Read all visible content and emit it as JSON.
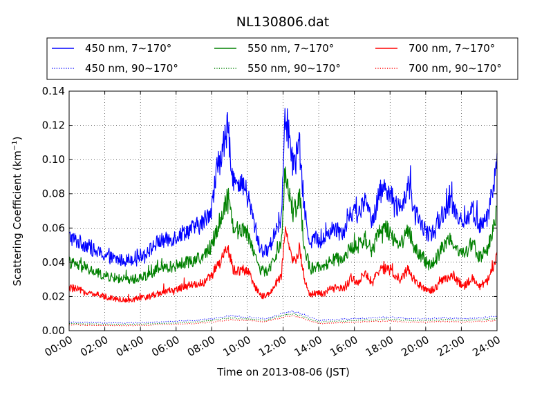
{
  "chart_data": {
    "type": "line",
    "title": "NL130806.dat",
    "xlabel": "Time on 2013-08-06 (JST)",
    "ylabel": "Scattering Coefficient (km",
    "ylabel_sup": "−1",
    "ylabel_end": ")",
    "x_ticks": [
      "00:00",
      "02:00",
      "04:00",
      "06:00",
      "08:00",
      "10:00",
      "12:00",
      "14:00",
      "16:00",
      "18:00",
      "20:00",
      "22:00",
      "24:00"
    ],
    "y_ticks": [
      "0.00",
      "0.02",
      "0.04",
      "0.06",
      "0.08",
      "0.10",
      "0.12",
      "0.14"
    ],
    "xlim": [
      0,
      24
    ],
    "ylim": [
      0,
      0.14
    ],
    "grid": true,
    "legend_position": "top",
    "series": [
      {
        "name": "450 nm, 7∼170°",
        "color": "#0000ff",
        "style": "solid",
        "x": [
          0,
          0.5,
          1,
          1.5,
          2,
          2.5,
          3,
          3.5,
          4,
          4.5,
          5,
          5.5,
          6,
          6.5,
          7,
          7.5,
          8,
          8.3,
          8.6,
          8.9,
          9.2,
          9.5,
          9.8,
          10.1,
          10.4,
          10.7,
          11,
          11.3,
          11.6,
          11.9,
          12.1,
          12.3,
          12.6,
          12.9,
          13.2,
          13.5,
          13.8,
          14.2,
          14.6,
          15,
          15.4,
          15.8,
          16.2,
          16.6,
          17,
          17.4,
          17.8,
          18.2,
          18.6,
          19,
          19.4,
          19.8,
          20.2,
          20.6,
          21,
          21.4,
          21.8,
          22.2,
          22.6,
          23,
          23.4,
          23.7,
          24
        ],
        "y": [
          0.055,
          0.052,
          0.05,
          0.046,
          0.044,
          0.042,
          0.041,
          0.042,
          0.044,
          0.047,
          0.052,
          0.053,
          0.055,
          0.058,
          0.06,
          0.063,
          0.072,
          0.095,
          0.105,
          0.118,
          0.09,
          0.082,
          0.085,
          0.075,
          0.062,
          0.048,
          0.046,
          0.05,
          0.06,
          0.065,
          0.13,
          0.115,
          0.095,
          0.11,
          0.07,
          0.052,
          0.054,
          0.052,
          0.058,
          0.06,
          0.058,
          0.07,
          0.068,
          0.075,
          0.065,
          0.08,
          0.085,
          0.075,
          0.07,
          0.085,
          0.068,
          0.062,
          0.055,
          0.06,
          0.07,
          0.075,
          0.068,
          0.062,
          0.072,
          0.06,
          0.065,
          0.078,
          0.1
        ]
      },
      {
        "name": "550 nm, 7∼170°",
        "color": "#008000",
        "style": "solid",
        "x": [
          0,
          0.5,
          1,
          1.5,
          2,
          2.5,
          3,
          3.5,
          4,
          4.5,
          5,
          5.5,
          6,
          6.5,
          7,
          7.5,
          8,
          8.3,
          8.6,
          8.9,
          9.2,
          9.5,
          9.8,
          10.1,
          10.4,
          10.7,
          11,
          11.3,
          11.6,
          11.9,
          12.1,
          12.3,
          12.6,
          12.9,
          13.2,
          13.5,
          13.8,
          14.2,
          14.6,
          15,
          15.4,
          15.8,
          16.2,
          16.6,
          17,
          17.4,
          17.8,
          18.2,
          18.6,
          19,
          19.4,
          19.8,
          20.2,
          20.6,
          21,
          21.4,
          21.8,
          22.2,
          22.6,
          23,
          23.4,
          23.7,
          24
        ],
        "y": [
          0.04,
          0.038,
          0.036,
          0.034,
          0.032,
          0.031,
          0.03,
          0.03,
          0.031,
          0.033,
          0.036,
          0.037,
          0.038,
          0.04,
          0.041,
          0.043,
          0.05,
          0.06,
          0.068,
          0.08,
          0.062,
          0.058,
          0.06,
          0.055,
          0.045,
          0.036,
          0.034,
          0.037,
          0.045,
          0.05,
          0.092,
          0.082,
          0.068,
          0.08,
          0.05,
          0.036,
          0.037,
          0.036,
          0.04,
          0.042,
          0.04,
          0.05,
          0.048,
          0.054,
          0.046,
          0.058,
          0.06,
          0.054,
          0.05,
          0.06,
          0.048,
          0.043,
          0.038,
          0.042,
          0.05,
          0.054,
          0.048,
          0.044,
          0.052,
          0.043,
          0.046,
          0.056,
          0.07
        ]
      },
      {
        "name": "700 nm, 7∼170°",
        "color": "#ff0000",
        "style": "solid",
        "x": [
          0,
          0.5,
          1,
          1.5,
          2,
          2.5,
          3,
          3.5,
          4,
          4.5,
          5,
          5.5,
          6,
          6.5,
          7,
          7.5,
          8,
          8.3,
          8.6,
          8.9,
          9.2,
          9.5,
          9.8,
          10.1,
          10.4,
          10.7,
          11,
          11.3,
          11.6,
          11.9,
          12.1,
          12.3,
          12.6,
          12.9,
          13.2,
          13.5,
          13.8,
          14.2,
          14.6,
          15,
          15.4,
          15.8,
          16.2,
          16.6,
          17,
          17.4,
          17.8,
          18.2,
          18.6,
          19,
          19.4,
          19.8,
          20.2,
          20.6,
          21,
          21.4,
          21.8,
          22.2,
          22.6,
          23,
          23.4,
          23.7,
          24
        ],
        "y": [
          0.025,
          0.024,
          0.022,
          0.021,
          0.02,
          0.019,
          0.018,
          0.018,
          0.019,
          0.02,
          0.022,
          0.023,
          0.024,
          0.026,
          0.027,
          0.028,
          0.032,
          0.038,
          0.042,
          0.048,
          0.036,
          0.035,
          0.036,
          0.033,
          0.026,
          0.021,
          0.02,
          0.022,
          0.028,
          0.031,
          0.058,
          0.05,
          0.04,
          0.048,
          0.03,
          0.021,
          0.022,
          0.021,
          0.024,
          0.025,
          0.024,
          0.03,
          0.029,
          0.033,
          0.028,
          0.035,
          0.036,
          0.033,
          0.03,
          0.036,
          0.029,
          0.026,
          0.023,
          0.025,
          0.03,
          0.032,
          0.029,
          0.026,
          0.031,
          0.026,
          0.028,
          0.034,
          0.044
        ]
      },
      {
        "name": "450 nm, 90∼170°",
        "color": "#0000ff",
        "style": "dotted",
        "x": [
          0,
          1,
          2,
          3,
          4,
          5,
          6,
          7,
          8,
          9,
          10,
          11,
          12,
          12.5,
          13,
          14,
          15,
          16,
          17,
          18,
          19,
          20,
          21,
          22,
          23,
          24
        ],
        "y": [
          0.005,
          0.0048,
          0.0046,
          0.0045,
          0.0046,
          0.005,
          0.0055,
          0.006,
          0.007,
          0.0085,
          0.008,
          0.007,
          0.01,
          0.0115,
          0.01,
          0.006,
          0.0065,
          0.007,
          0.0075,
          0.008,
          0.007,
          0.007,
          0.0075,
          0.007,
          0.0075,
          0.0085
        ]
      },
      {
        "name": "550 nm, 90∼170°",
        "color": "#008000",
        "style": "dotted",
        "x": [
          0,
          1,
          2,
          3,
          4,
          5,
          6,
          7,
          8,
          9,
          10,
          11,
          12,
          12.5,
          13,
          14,
          15,
          16,
          17,
          18,
          19,
          20,
          21,
          22,
          23,
          24
        ],
        "y": [
          0.0042,
          0.004,
          0.0038,
          0.0037,
          0.0038,
          0.0042,
          0.0046,
          0.005,
          0.006,
          0.0075,
          0.007,
          0.006,
          0.009,
          0.01,
          0.0088,
          0.005,
          0.0055,
          0.006,
          0.0064,
          0.0068,
          0.006,
          0.006,
          0.0064,
          0.006,
          0.0064,
          0.0072
        ]
      },
      {
        "name": "700 nm, 90∼170°",
        "color": "#ff0000",
        "style": "dotted",
        "x": [
          0,
          1,
          2,
          3,
          4,
          5,
          6,
          7,
          8,
          9,
          10,
          11,
          12,
          12.5,
          13,
          14,
          15,
          16,
          17,
          18,
          19,
          20,
          21,
          22,
          23,
          24
        ],
        "y": [
          0.0034,
          0.0032,
          0.0031,
          0.003,
          0.0031,
          0.0034,
          0.0038,
          0.0042,
          0.005,
          0.0065,
          0.006,
          0.0052,
          0.008,
          0.0088,
          0.0076,
          0.0042,
          0.0046,
          0.005,
          0.0054,
          0.0058,
          0.005,
          0.005,
          0.0054,
          0.005,
          0.0054,
          0.006
        ]
      }
    ]
  }
}
